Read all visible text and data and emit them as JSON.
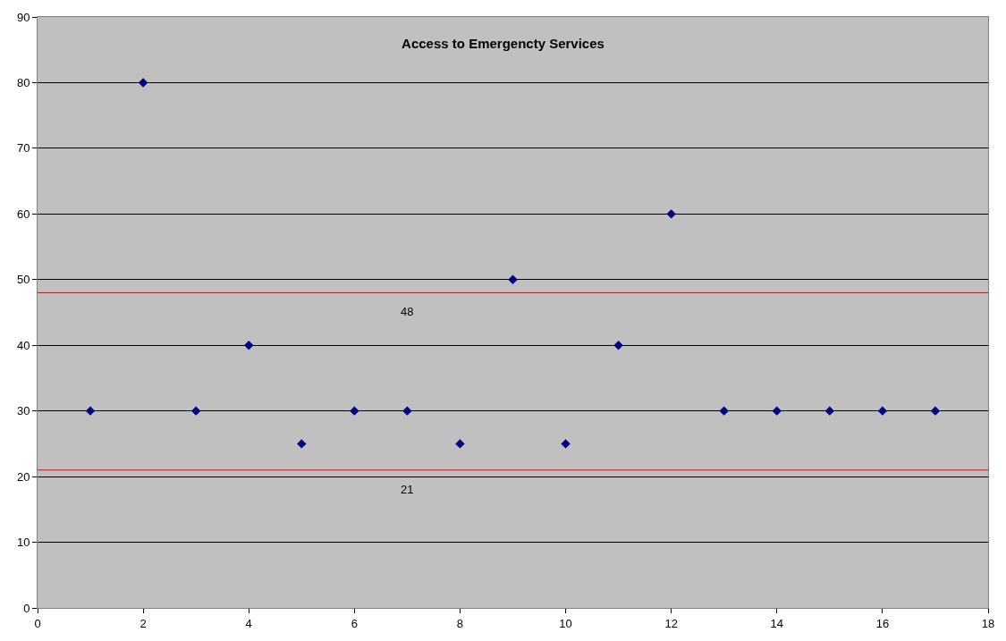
{
  "chart_data": {
    "type": "scatter",
    "title": "Access to Emergencty Services",
    "x": [
      1,
      2,
      3,
      4,
      5,
      6,
      7,
      8,
      9,
      10,
      11,
      12,
      13,
      14,
      15,
      16,
      17
    ],
    "series": [
      {
        "color": "#000080",
        "values": [
          30,
          80,
          30,
          40,
          25,
          30,
          30,
          25,
          50,
          25,
          40,
          60,
          30,
          30,
          30,
          30,
          30
        ]
      }
    ],
    "marker": "diamond",
    "xlim": [
      0,
      18
    ],
    "xticks": [
      0,
      2,
      4,
      6,
      8,
      10,
      12,
      14,
      16,
      18
    ],
    "ylim": [
      0,
      90
    ],
    "yticks": [
      0,
      10,
      20,
      30,
      40,
      50,
      60,
      70,
      80,
      90
    ],
    "grid": "y",
    "ref_lines": [
      {
        "axis": "y",
        "value": 48,
        "label": "48",
        "color": "#ff0000"
      },
      {
        "axis": "y",
        "value": 21,
        "label": "21",
        "color": "#ff0000"
      }
    ]
  }
}
